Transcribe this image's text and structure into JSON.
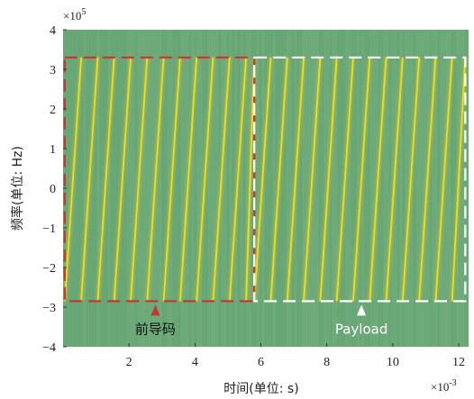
{
  "chart_data": {
    "type": "heatmap",
    "subtype": "spectrogram",
    "xlabel": "时间(单位: s)",
    "ylabel": "频率(单位: Hz)",
    "x_exponent_label": "×10",
    "x_exponent_power": "-3",
    "y_exponent_label": "×10",
    "y_exponent_power": "5",
    "xlim": [
      0,
      12.3
    ],
    "ylim": [
      -4,
      4
    ],
    "x_ticks": [
      {
        "value": 2,
        "label": "2"
      },
      {
        "value": 4,
        "label": "4"
      },
      {
        "value": 6,
        "label": "6"
      },
      {
        "value": 8,
        "label": "8"
      },
      {
        "value": 10,
        "label": "10"
      },
      {
        "value": 12,
        "label": "12"
      }
    ],
    "y_ticks": [
      {
        "value": 4,
        "label": "4"
      },
      {
        "value": 3,
        "label": "3"
      },
      {
        "value": 2,
        "label": "2"
      },
      {
        "value": 1,
        "label": "1"
      },
      {
        "value": 0,
        "label": "0"
      },
      {
        "value": -1,
        "label": "−1"
      },
      {
        "value": -2,
        "label": "−2"
      },
      {
        "value": -3,
        "label": "−3"
      },
      {
        "value": -4,
        "label": "−4"
      }
    ],
    "chirp_band": [
      -2.85,
      3.3
    ],
    "preamble": {
      "label": "前导码",
      "x_range": [
        0.05,
        5.8
      ],
      "chirp_period": 0.5,
      "chirp_direction": "up",
      "color": "#cc3333",
      "arrow_x": 2.8
    },
    "payload": {
      "label": "Payload",
      "x_range": [
        5.8,
        12.2
      ],
      "chirp_period": 0.5,
      "chirp_direction": "up",
      "color": "#ffffff",
      "arrow_x": 9.05
    },
    "colors": {
      "background": "#6aa877",
      "chirp": "#f2dd1a",
      "chirp_glow": "#c9c63a"
    }
  }
}
